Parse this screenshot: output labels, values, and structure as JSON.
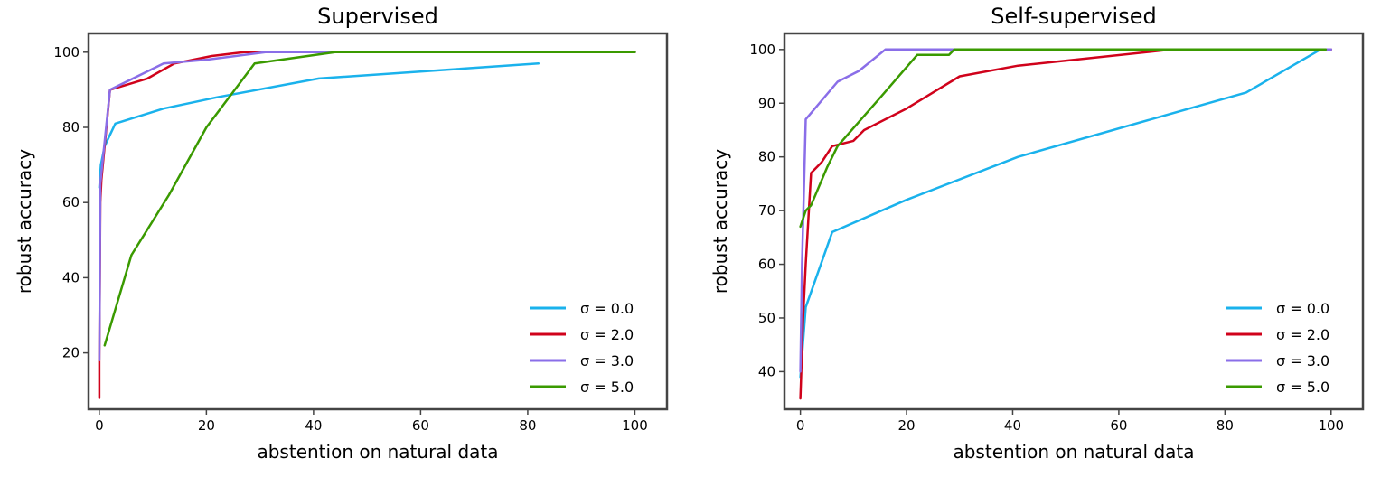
{
  "chart_data": [
    {
      "type": "line",
      "title": "Supervised",
      "xlabel": "abstention on natural data",
      "ylabel": "robust accuracy",
      "xlim": [
        -2,
        106
      ],
      "ylim": [
        5,
        105
      ],
      "xticks": [
        0,
        20,
        40,
        60,
        80,
        100
      ],
      "yticks": [
        20,
        40,
        60,
        80,
        100
      ],
      "grid": false,
      "legend_position": "lower-right",
      "series": [
        {
          "name": "σ = 0.0",
          "color": "#1ab2ec",
          "x": [
            0,
            0.3,
            1,
            3,
            12,
            22,
            41,
            82
          ],
          "y": [
            64,
            70,
            75,
            81,
            85,
            88,
            93,
            97
          ]
        },
        {
          "name": "σ = 2.0",
          "color": "#d0021b",
          "x": [
            0,
            0,
            0.2,
            0.4,
            2,
            9,
            14,
            21,
            27,
            43,
            100
          ],
          "y": [
            8,
            18,
            60,
            66,
            90,
            93,
            97,
            99,
            100,
            100,
            100
          ]
        },
        {
          "name": "σ = 3.0",
          "color": "#8a6ee8",
          "x": [
            0,
            0.2,
            2,
            12,
            20,
            31,
            43,
            100
          ],
          "y": [
            18,
            65,
            90,
            97,
            98,
            100,
            100,
            100
          ]
        },
        {
          "name": "σ = 5.0",
          "color": "#3a9a00",
          "x": [
            1,
            6,
            13,
            20,
            29,
            44,
            100
          ],
          "y": [
            22,
            46,
            62,
            80,
            97,
            100,
            100
          ]
        }
      ]
    },
    {
      "type": "line",
      "title": "Self-supervised",
      "xlabel": "abstention on natural data",
      "ylabel": "robust accuracy",
      "xlim": [
        -3,
        106
      ],
      "ylim": [
        33,
        103
      ],
      "xticks": [
        0,
        20,
        40,
        60,
        80,
        100
      ],
      "yticks": [
        40,
        50,
        60,
        70,
        80,
        90,
        100
      ],
      "grid": false,
      "legend_position": "lower-right",
      "series": [
        {
          "name": "σ = 0.0",
          "color": "#1ab2ec",
          "x": [
            0,
            1,
            6,
            20,
            41,
            84,
            98
          ],
          "y": [
            39,
            52,
            66,
            72,
            80,
            92,
            100
          ]
        },
        {
          "name": "σ = 2.0",
          "color": "#d0021b",
          "x": [
            0,
            0.5,
            1,
            2,
            4,
            6,
            10,
            12,
            20,
            30,
            41,
            70,
            100
          ],
          "y": [
            35,
            50,
            60,
            77,
            79,
            82,
            83,
            85,
            89,
            95,
            97,
            100,
            100
          ]
        },
        {
          "name": "σ = 3.0",
          "color": "#8a6ee8",
          "x": [
            0,
            0.3,
            1,
            7,
            11,
            16,
            30,
            100
          ],
          "y": [
            40,
            60,
            87,
            94,
            96,
            100,
            100,
            100
          ]
        },
        {
          "name": "σ = 5.0",
          "color": "#3a9a00",
          "x": [
            0,
            1,
            2,
            5,
            7,
            15,
            22,
            28,
            29,
            99
          ],
          "y": [
            67,
            70,
            71,
            78,
            82,
            91,
            99,
            99,
            100,
            100
          ]
        }
      ]
    }
  ]
}
